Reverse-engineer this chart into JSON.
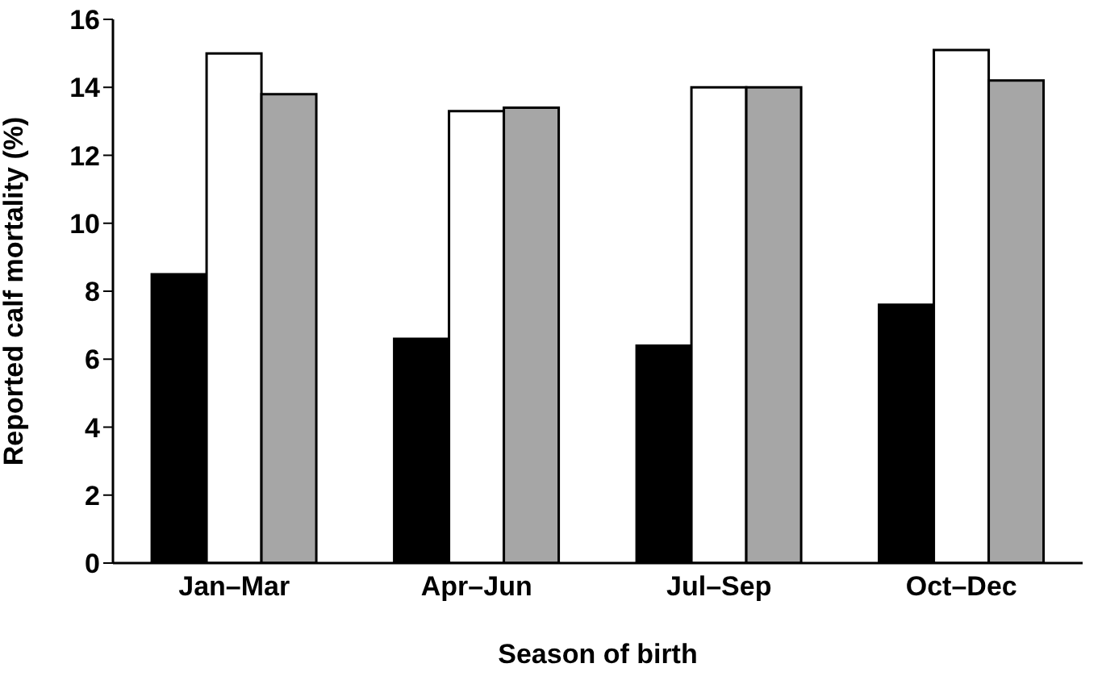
{
  "chart_data": {
    "type": "bar",
    "xlabel": "Season of birth",
    "ylabel": "Reported calf mortality (%)",
    "categories": [
      "Jan–Mar",
      "Apr–Jun",
      "Jul–Sep",
      "Oct–Dec"
    ],
    "series": [
      {
        "color": "#000000",
        "values": [
          8.5,
          6.6,
          6.4,
          7.6
        ]
      },
      {
        "color": "#ffffff",
        "values": [
          15.0,
          13.3,
          14.0,
          15.1
        ]
      },
      {
        "color": "#a6a6a6",
        "values": [
          13.8,
          13.4,
          14.0,
          14.2
        ]
      }
    ],
    "ylim": [
      0,
      16
    ],
    "yticks": [
      0,
      2,
      4,
      6,
      8,
      10,
      12,
      14,
      16
    ],
    "grid": false,
    "legend": false
  }
}
